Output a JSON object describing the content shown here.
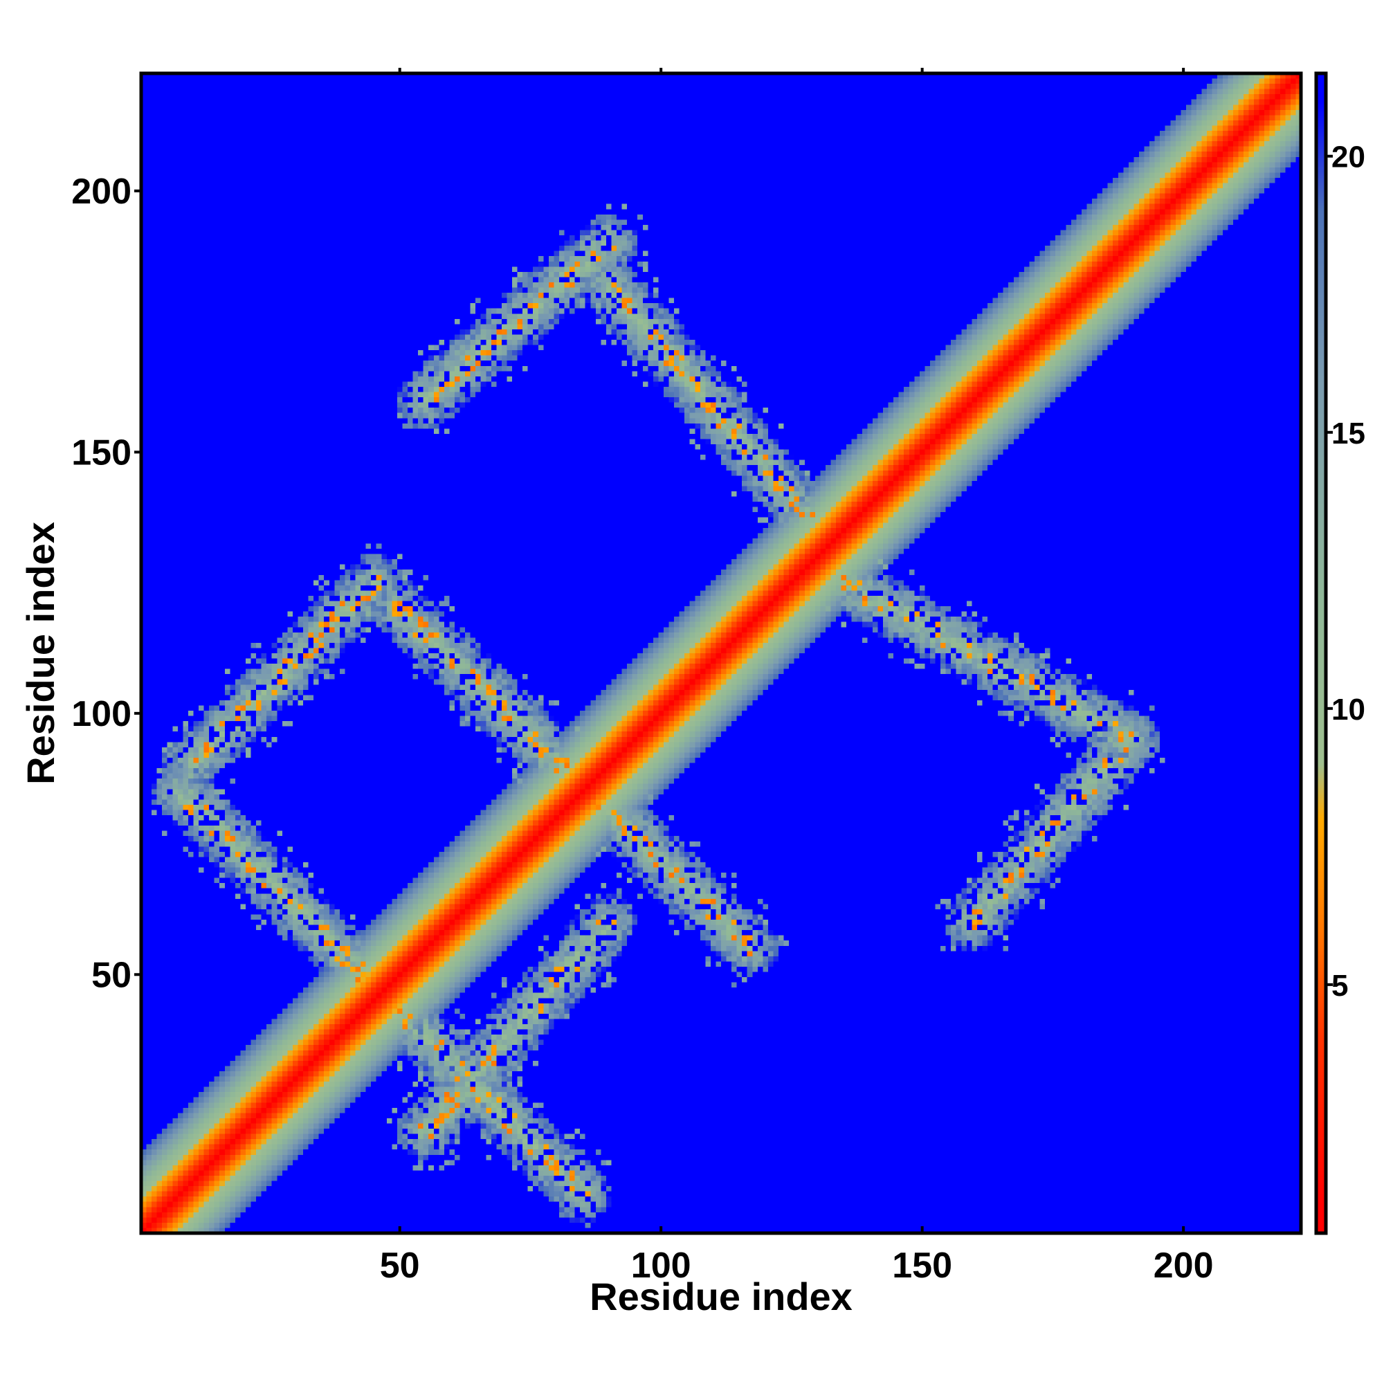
{
  "chart_data": {
    "type": "heatmap",
    "title": "",
    "xlabel": "Residue index",
    "ylabel": "Residue index",
    "xlim": [
      1,
      222
    ],
    "ylim": [
      1,
      222
    ],
    "xticks": [
      50,
      100,
      150,
      200
    ],
    "yticks": [
      50,
      100,
      150,
      200
    ],
    "colorbar": {
      "ticks": [
        5,
        10,
        15,
        20
      ],
      "range": [
        0.5,
        21.5
      ],
      "colors": [
        {
          "value": 1,
          "color": "#ff0000"
        },
        {
          "value": 4,
          "color": "#ff3300"
        },
        {
          "value": 6,
          "color": "#ff7700"
        },
        {
          "value": 8,
          "color": "#ffaa00"
        },
        {
          "value": 9,
          "color": "#9fbf8f"
        },
        {
          "value": 12,
          "color": "#90b898"
        },
        {
          "value": 16,
          "color": "#7a9bb0"
        },
        {
          "value": 19,
          "color": "#4d72b8"
        },
        {
          "value": 21,
          "color": "#0000ff"
        }
      ],
      "background_color": "#0000ff"
    },
    "grid": false,
    "bands": [
      {
        "type": "diagonal",
        "from": [
          1,
          1
        ],
        "to": [
          222,
          222
        ],
        "note": "main diagonal, red core"
      },
      {
        "type": "anti",
        "from": [
          8,
          85
        ],
        "to": [
          85,
          8
        ]
      },
      {
        "type": "anti",
        "from": [
          50,
          120
        ],
        "to": [
          117,
          55
        ]
      },
      {
        "type": "anti",
        "from": [
          90,
          182
        ],
        "to": [
          130,
          135
        ]
      },
      {
        "type": "anti",
        "from": [
          135,
          125
        ],
        "to": [
          190,
          95
        ]
      },
      {
        "type": "parallel",
        "from": [
          10,
          90
        ],
        "to": [
          45,
          125
        ]
      },
      {
        "type": "parallel",
        "from": [
          55,
          20
        ],
        "to": [
          90,
          60
        ]
      },
      {
        "type": "parallel",
        "from": [
          55,
          160
        ],
        "to": [
          90,
          190
        ]
      },
      {
        "type": "parallel",
        "from": [
          160,
          60
        ],
        "to": [
          190,
          95
        ]
      }
    ]
  }
}
